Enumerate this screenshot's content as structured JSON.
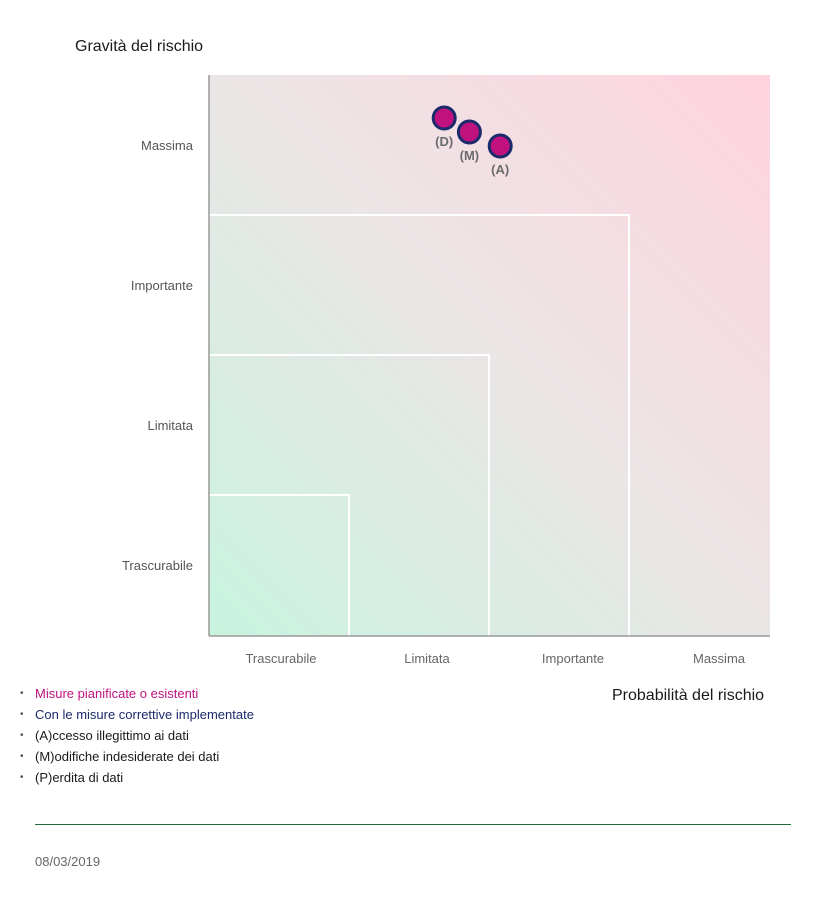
{
  "chart_data": {
    "type": "scatter",
    "ylabel": "Gravità del rischio",
    "xlabel": "Probabilità del rischio",
    "y_categories": [
      "Trascurabile",
      "Limitata",
      "Importante",
      "Massima"
    ],
    "x_categories": [
      "Trascurabile",
      "Limitata",
      "Importante",
      "Massima"
    ],
    "points": [
      {
        "label": "(D)",
        "x": 2.18,
        "y": 4.2
      },
      {
        "label": "(M)",
        "x": 2.36,
        "y": 4.1
      },
      {
        "label": "(A)",
        "x": 2.58,
        "y": 4.0
      }
    ],
    "colors": {
      "marker_fill": "#c0127f",
      "marker_stroke": "#1b2a6b",
      "low_risk": "#c8f3df",
      "high_risk": "#ffd3de",
      "region_border": "#ffffff",
      "axis": "#999999"
    }
  },
  "legend": [
    {
      "text": "Misure pianificate o esistenti",
      "color": "#c0127f"
    },
    {
      "text": "Con le misure correttive implementate",
      "color": "#1b2a6b"
    },
    {
      "text": "(A)ccesso illegittimo ai dati",
      "color": "#1a1a1a"
    },
    {
      "text": "(M)odifiche indesiderate dei dati",
      "color": "#1a1a1a"
    },
    {
      "text": "(P)erdita di dati",
      "color": "#1a1a1a"
    }
  ],
  "footer": {
    "date": "08/03/2019"
  }
}
